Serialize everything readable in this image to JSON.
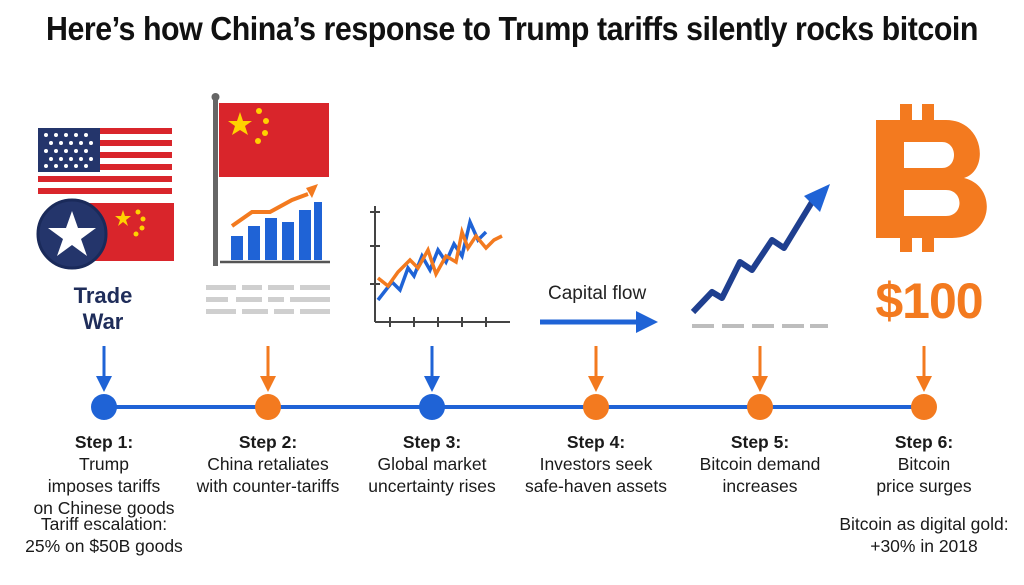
{
  "title": "Here’s how China’s response to Trump tariffs silently rocks bitcoin",
  "labels": {
    "trade_war": [
      "Trade",
      "War"
    ],
    "capital_flow": "Capital flow",
    "price": "$100"
  },
  "steps": [
    {
      "head": "Step 1:",
      "lines": [
        "Trump",
        "imposes tariffs",
        "on Chinese goods"
      ],
      "dot_color": "#1f63d6"
    },
    {
      "head": "Step 2:",
      "lines": [
        "China retaliates",
        "with counter-tariffs"
      ],
      "dot_color": "#f37a1f"
    },
    {
      "head": "Step 3:",
      "lines": [
        "Global market",
        "uncertainty rises"
      ],
      "dot_color": "#1f63d6"
    },
    {
      "head": "Step 4:",
      "lines": [
        "Investors seek",
        "safe-haven assets"
      ],
      "dot_color": "#f37a1f"
    },
    {
      "head": "Step 5:",
      "lines": [
        "Bitcoin demand",
        "increases"
      ],
      "dot_color": "#f37a1f"
    },
    {
      "head": "Step 6:",
      "lines": [
        "Bitcoin",
        "price surges"
      ],
      "dot_color": "#f37a1f"
    }
  ],
  "notes": {
    "left": [
      "Tariff escalation:",
      "25% on $50B goods"
    ],
    "right": [
      "Bitcoin as digital gold:",
      "+30% in 2018"
    ]
  },
  "colors": {
    "blue": "#1f63d6",
    "orange": "#f37a1f",
    "navy": "#1f2d5a",
    "red": "#d9252b"
  },
  "icons": [
    "us-flag-icon",
    "china-flag-icon",
    "bar-chart-icon",
    "volatile-line-chart-icon",
    "arrow-right-icon",
    "rising-trend-icon",
    "bitcoin-icon"
  ]
}
